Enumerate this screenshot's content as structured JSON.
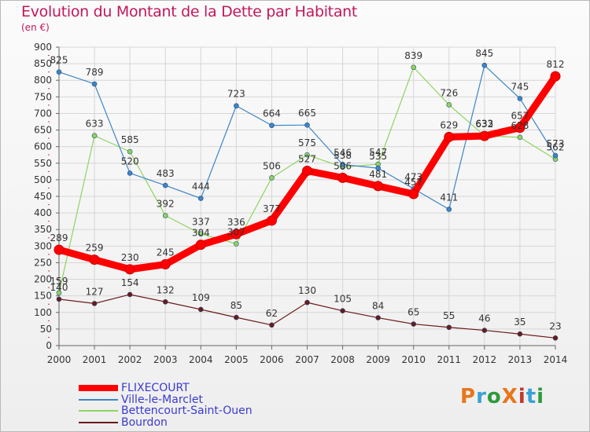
{
  "header": {
    "title": "Evolution du Montant de la Dette par Habitant",
    "unit": "(en €)"
  },
  "logo": {
    "text": "ProXiti",
    "colors": [
      "#e8761b",
      "#3aa0d8",
      "#2e9a3b",
      "#e8761b",
      "#c0392b",
      "#3aa0d8",
      "#2e9a3b"
    ]
  },
  "chart_data": {
    "type": "line",
    "x": [
      "2000",
      "2001",
      "2002",
      "2003",
      "2004",
      "2005",
      "2006",
      "2007",
      "2008",
      "2009",
      "2010",
      "2011",
      "2012",
      "2013",
      "2014"
    ],
    "ylim": [
      0,
      900
    ],
    "yticks": [
      0,
      50,
      100,
      150,
      200,
      250,
      300,
      350,
      400,
      450,
      500,
      550,
      600,
      650,
      700,
      750,
      800,
      850,
      900
    ],
    "grid": true,
    "legend": "bottom-left",
    "series": [
      {
        "name": "FLIXECOURT",
        "color": "#ff0000",
        "values": [
          289,
          259,
          230,
          245,
          304,
          336,
          377,
          527,
          506,
          481,
          457,
          629,
          632,
          657,
          812
        ],
        "labels": [
          "289",
          "259",
          "230",
          "245",
          "304",
          "336",
          "377",
          "527",
          "506",
          "481",
          "457",
          "629",
          "632",
          "657",
          "812"
        ]
      },
      {
        "name": "Ville-le-Marclet",
        "color": "#3d85c6",
        "values": [
          825,
          789,
          520,
          483,
          444,
          723,
          664,
          665,
          546,
          535,
          473,
          411,
          845,
          745,
          573
        ],
        "labels": [
          "825",
          "789",
          "520",
          "483",
          "444",
          "723",
          "664",
          "665",
          "546",
          "535",
          "473",
          "411",
          "845",
          "745",
          "573"
        ]
      },
      {
        "name": "Bettencourt-Saint-Ouen",
        "color": "#8ed45f",
        "values": [
          159,
          633,
          585,
          392,
          337,
          307,
          506,
          575,
          538,
          547,
          839,
          726,
          633,
          628,
          562
        ],
        "labels": [
          "159",
          "633",
          "585",
          "392",
          "337",
          "307",
          "506",
          "575",
          "538",
          "547",
          "839",
          "726",
          "633",
          "628",
          "562"
        ]
      },
      {
        "name": "Bourdon",
        "color": "#6b1a1a",
        "values": [
          140,
          127,
          154,
          132,
          109,
          85,
          62,
          130,
          105,
          84,
          65,
          55,
          46,
          35,
          23
        ],
        "labels": [
          "140",
          "127",
          "154",
          "132",
          "109",
          "85",
          "62",
          "130",
          "105",
          "84",
          "65",
          "55",
          "46",
          "35",
          "23"
        ]
      }
    ]
  }
}
